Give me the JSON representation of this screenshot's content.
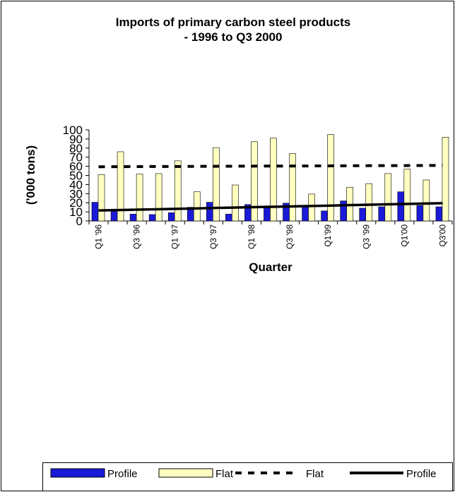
{
  "chart_data": {
    "type": "bar",
    "title": [
      "Imports of primary carbon steel products",
      "- 1996 to Q3 2000"
    ],
    "x_label": "Quarter",
    "y_label": "('000 tons)",
    "categories": [
      "Q1 '96",
      null,
      "Q3 '96",
      null,
      "Q1 '97",
      null,
      "Q3 '97",
      null,
      "Q1 '98",
      null,
      "Q3 '98",
      null,
      "Q1'99",
      null,
      "Q3 '99",
      null,
      "Q1'00",
      null,
      "Q3'00"
    ],
    "series": [
      {
        "name": "Profile",
        "type": "bar",
        "color": "#1a1ad8",
        "values": [
          20.5,
          13,
          7.5,
          7,
          9,
          15,
          20.5,
          7.5,
          18,
          14.5,
          19.5,
          16,
          11,
          22,
          14,
          15.5,
          32,
          17,
          15.5
        ]
      },
      {
        "name": "Flat",
        "type": "bar",
        "color": "#ffffc0",
        "values": [
          51,
          76,
          51.5,
          52,
          66,
          32,
          80.5,
          39.5,
          87,
          91,
          74,
          29.5,
          95,
          37,
          41,
          52,
          57,
          45,
          92
        ]
      },
      {
        "name": "Flat",
        "type": "dashed-line",
        "color": "#000000",
        "values": [
          59.5,
          59.6,
          59.7,
          59.8,
          59.8,
          59.9,
          60,
          60.1,
          60.2,
          60.3,
          60.3,
          60.4,
          60.5,
          60.6,
          60.7,
          60.8,
          60.8,
          60.9,
          61
        ]
      },
      {
        "name": "Profile",
        "type": "line",
        "color": "#000000",
        "values": [
          11.5,
          11.9,
          12.4,
          12.8,
          13.3,
          13.7,
          14.2,
          14.6,
          15.1,
          15.5,
          15.9,
          16.4,
          16.8,
          17.3,
          17.7,
          18.2,
          18.6,
          19.1,
          19.5
        ]
      }
    ],
    "ylim": [
      0,
      100
    ],
    "yticks": [
      0,
      10,
      20,
      30,
      40,
      50,
      60,
      70,
      80,
      90,
      100
    ],
    "grid": false
  }
}
